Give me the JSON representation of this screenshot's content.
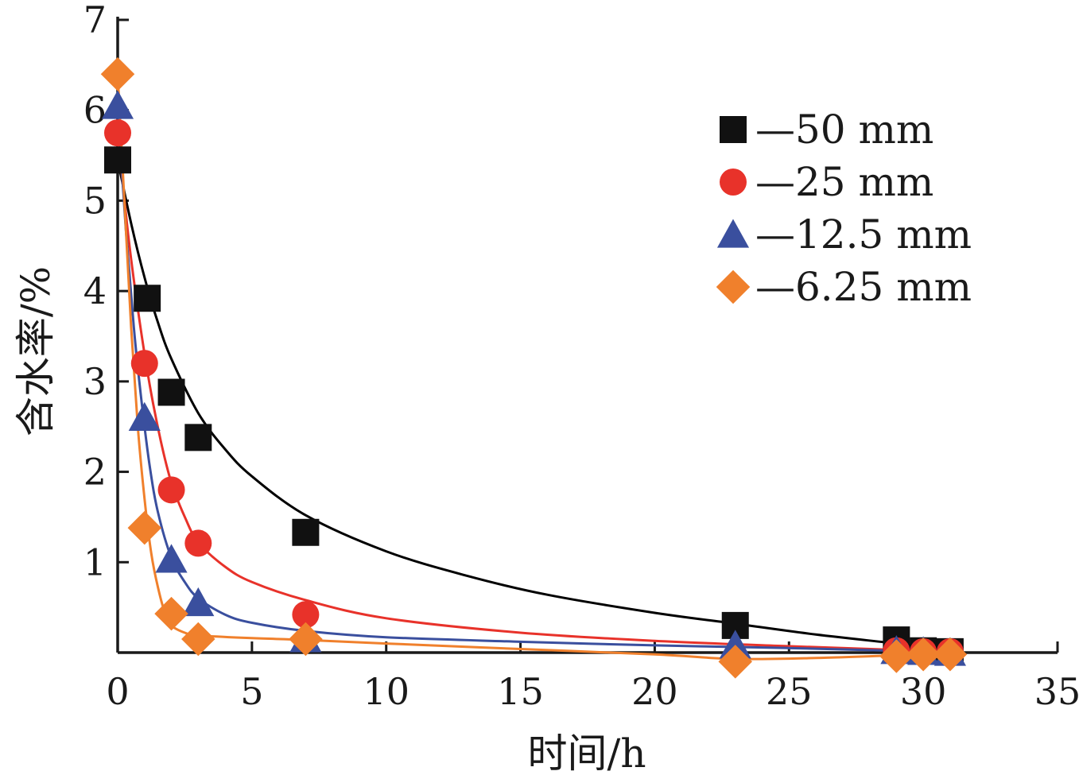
{
  "chart_data": {
    "type": "scatter",
    "title": "",
    "xlabel": "时间/h",
    "ylabel": "含水率/%",
    "xlim": [
      0,
      35
    ],
    "ylim": [
      0,
      7
    ],
    "x_ticks": [
      "0",
      "5",
      "10",
      "15",
      "20",
      "25",
      "30",
      "35"
    ],
    "y_ticks": [
      "1",
      "2",
      "3",
      "4",
      "5",
      "6",
      "7"
    ],
    "grid": false,
    "legend_position": "top-right",
    "series": [
      {
        "name": "—50 mm",
        "marker": "square",
        "color": "#111111",
        "fit_color": "#000000",
        "points": [
          [
            0,
            5.45
          ],
          [
            1.1,
            3.92
          ],
          [
            2,
            2.88
          ],
          [
            3,
            2.38
          ],
          [
            7,
            1.33
          ],
          [
            23,
            0.3
          ],
          [
            29,
            0.14
          ],
          [
            30,
            0.02
          ],
          [
            31,
            0.01
          ]
        ],
        "fit": [
          [
            0,
            5.45
          ],
          [
            0.5,
            4.75
          ],
          [
            1,
            4.15
          ],
          [
            1.5,
            3.65
          ],
          [
            2,
            3.25
          ],
          [
            3,
            2.65
          ],
          [
            4,
            2.25
          ],
          [
            5,
            1.95
          ],
          [
            7,
            1.52
          ],
          [
            10,
            1.12
          ],
          [
            13,
            0.85
          ],
          [
            16,
            0.64
          ],
          [
            20,
            0.44
          ],
          [
            23,
            0.32
          ],
          [
            26,
            0.2
          ],
          [
            29,
            0.1
          ],
          [
            31,
            0.03
          ]
        ]
      },
      {
        "name": "—25 mm",
        "marker": "circle",
        "color": "#e8322a",
        "fit_color": "#e8322a",
        "points": [
          [
            0,
            5.75
          ],
          [
            1,
            3.2
          ],
          [
            2,
            1.8
          ],
          [
            3,
            1.21
          ],
          [
            7,
            0.42
          ],
          [
            29,
            0.02
          ],
          [
            30,
            0.01
          ],
          [
            31,
            0.01
          ]
        ],
        "fit": [
          [
            0,
            5.75
          ],
          [
            0.4,
            4.6
          ],
          [
            0.8,
            3.7
          ],
          [
            1.2,
            2.95
          ],
          [
            1.6,
            2.35
          ],
          [
            2,
            1.88
          ],
          [
            2.5,
            1.5
          ],
          [
            3,
            1.22
          ],
          [
            4,
            0.95
          ],
          [
            5,
            0.78
          ],
          [
            7,
            0.58
          ],
          [
            10,
            0.38
          ],
          [
            15,
            0.22
          ],
          [
            20,
            0.13
          ],
          [
            25,
            0.07
          ],
          [
            29,
            0.03
          ],
          [
            31,
            0.01
          ]
        ]
      },
      {
        "name": "—12.5 mm",
        "marker": "triangle",
        "color": "#3a4f9e",
        "fit_color": "#3a4f9e",
        "points": [
          [
            0,
            6.05
          ],
          [
            1,
            2.6
          ],
          [
            2,
            1.03
          ],
          [
            3,
            0.55
          ],
          [
            7,
            0.15
          ],
          [
            23,
            0.08
          ],
          [
            29,
            0.02
          ],
          [
            30,
            0.01
          ],
          [
            31,
            0.0
          ]
        ],
        "fit": [
          [
            0,
            6.05
          ],
          [
            0.3,
            4.7
          ],
          [
            0.6,
            3.6
          ],
          [
            0.9,
            2.75
          ],
          [
            1.2,
            2.05
          ],
          [
            1.5,
            1.55
          ],
          [
            2,
            1.05
          ],
          [
            2.5,
            0.78
          ],
          [
            3,
            0.6
          ],
          [
            4,
            0.42
          ],
          [
            5,
            0.33
          ],
          [
            7,
            0.24
          ],
          [
            10,
            0.17
          ],
          [
            15,
            0.12
          ],
          [
            20,
            0.08
          ],
          [
            25,
            0.05
          ],
          [
            29,
            0.02
          ],
          [
            31,
            0.0
          ]
        ]
      },
      {
        "name": "—6.25 mm",
        "marker": "diamond",
        "color": "#f0802c",
        "fit_color": "#f0802c",
        "points": [
          [
            0,
            6.4
          ],
          [
            1,
            1.38
          ],
          [
            2,
            0.43
          ],
          [
            3,
            0.15
          ],
          [
            7,
            0.15
          ],
          [
            23,
            -0.1
          ],
          [
            29,
            -0.04
          ],
          [
            30,
            -0.02
          ],
          [
            31,
            -0.02
          ]
        ],
        "fit": [
          [
            0,
            6.4
          ],
          [
            0.25,
            5.0
          ],
          [
            0.5,
            3.6
          ],
          [
            0.75,
            2.5
          ],
          [
            1,
            1.7
          ],
          [
            1.25,
            1.1
          ],
          [
            1.5,
            0.72
          ],
          [
            1.75,
            0.45
          ],
          [
            2,
            0.3
          ],
          [
            2.5,
            0.22
          ],
          [
            3,
            0.19
          ],
          [
            5,
            0.16
          ],
          [
            7,
            0.14
          ],
          [
            10,
            0.1
          ],
          [
            15,
            0.04
          ],
          [
            20,
            -0.02
          ],
          [
            23,
            -0.07
          ],
          [
            26,
            -0.06
          ],
          [
            29,
            -0.03
          ],
          [
            31,
            -0.01
          ]
        ]
      }
    ]
  }
}
